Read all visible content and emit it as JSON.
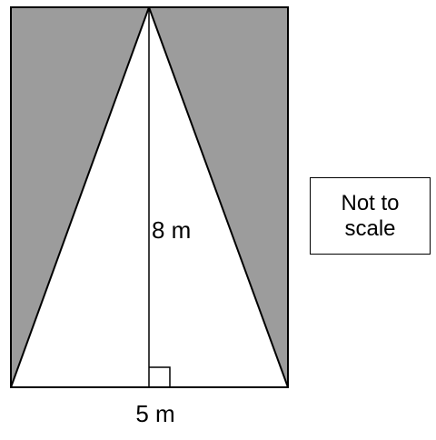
{
  "diagram": {
    "height_label": "8 m",
    "base_label": "5 m",
    "note_line1": "Not to",
    "note_line2": "scale",
    "colors": {
      "shaded": "#9c9c9c",
      "stroke": "#000000",
      "background": "#ffffff"
    }
  }
}
